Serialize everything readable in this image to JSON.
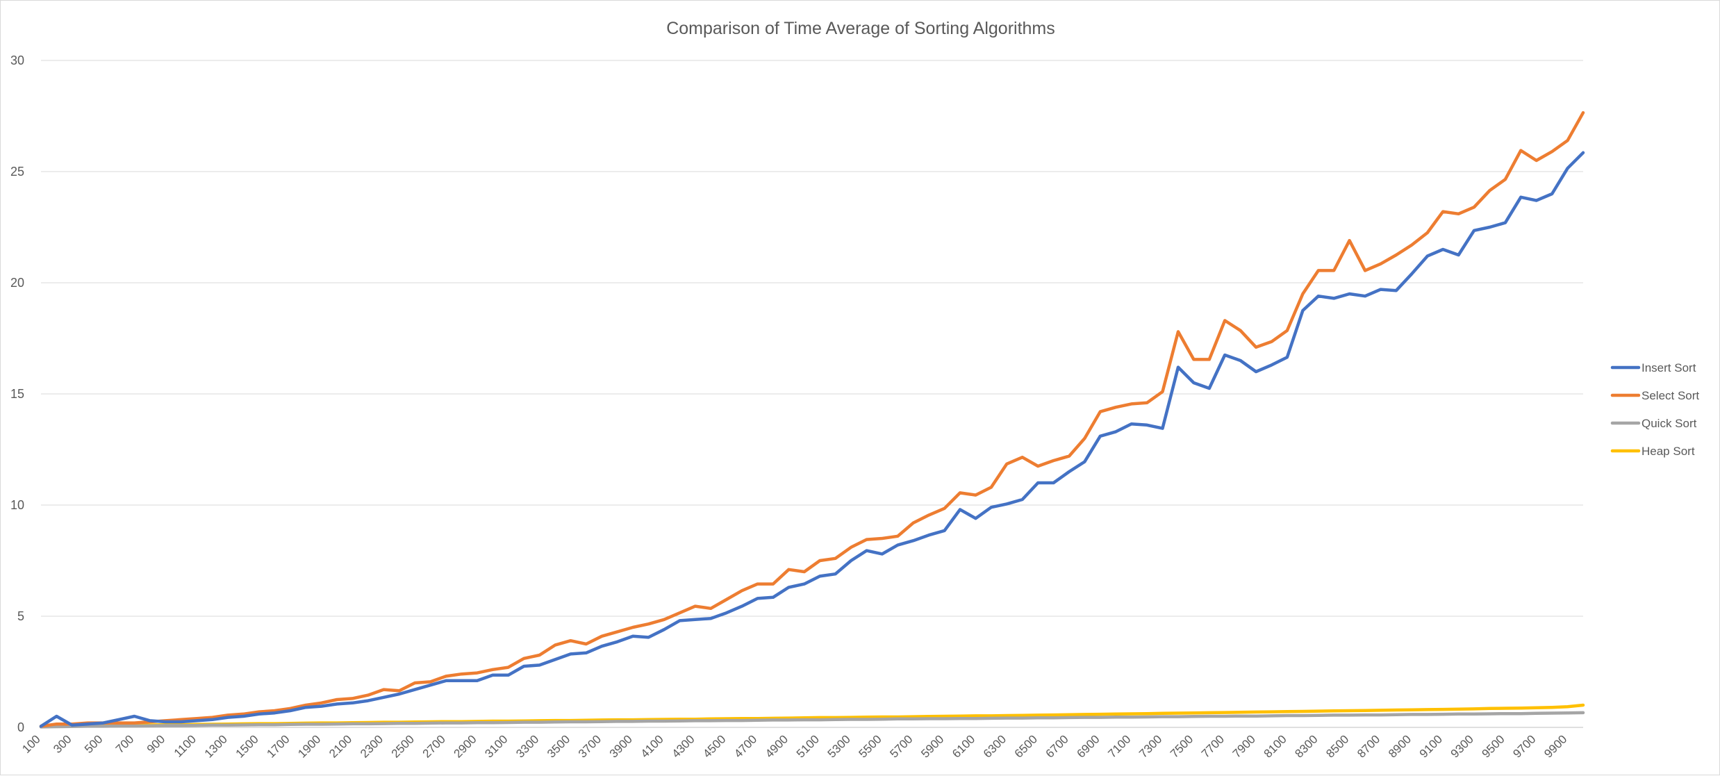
{
  "chart_data": {
    "type": "line",
    "title": "Comparison of Time Average of Sorting Algorithms",
    "xlabel": "",
    "ylabel": "",
    "ylim": [
      0,
      30
    ],
    "yticks": [
      0,
      5,
      10,
      15,
      20,
      25,
      30
    ],
    "grid": true,
    "legend_position": "right",
    "x": [
      100,
      200,
      300,
      400,
      500,
      600,
      700,
      800,
      900,
      1000,
      1100,
      1200,
      1300,
      1400,
      1500,
      1600,
      1700,
      1800,
      1900,
      2000,
      2100,
      2200,
      2300,
      2400,
      2500,
      2600,
      2700,
      2800,
      2900,
      3000,
      3100,
      3200,
      3300,
      3400,
      3500,
      3600,
      3700,
      3800,
      3900,
      4000,
      4100,
      4200,
      4300,
      4400,
      4500,
      4600,
      4700,
      4800,
      4900,
      5000,
      5100,
      5200,
      5300,
      5400,
      5500,
      5600,
      5700,
      5800,
      5900,
      6000,
      6100,
      6200,
      6300,
      6400,
      6500,
      6600,
      6700,
      6800,
      6900,
      7000,
      7100,
      7200,
      7300,
      7400,
      7500,
      7600,
      7700,
      7800,
      7900,
      8000,
      8100,
      8200,
      8300,
      8400,
      8500,
      8600,
      8700,
      8800,
      8900,
      9000,
      9100,
      9200,
      9300,
      9400,
      9500,
      9600,
      9700,
      9800,
      9900,
      10000
    ],
    "x_tick_labels": [
      "100",
      "300",
      "500",
      "700",
      "900",
      "1100",
      "1300",
      "1500",
      "1700",
      "1900",
      "2100",
      "2300",
      "2500",
      "2700",
      "2900",
      "3100",
      "3300",
      "3500",
      "3700",
      "3900",
      "4100",
      "4300",
      "4500",
      "4700",
      "4900",
      "5100",
      "5300",
      "5500",
      "5700",
      "5900",
      "6100",
      "6300",
      "6500",
      "6700",
      "6900",
      "7100",
      "7300",
      "7500",
      "7700",
      "7900",
      "8100",
      "8300",
      "8500",
      "8700",
      "8900",
      "9100",
      "9300",
      "9500",
      "9700",
      "9900"
    ],
    "series": [
      {
        "name": "Insert Sort",
        "color": "#4472C4",
        "values": [
          0.05,
          0.5,
          0.1,
          0.15,
          0.2,
          0.35,
          0.5,
          0.3,
          0.25,
          0.25,
          0.3,
          0.35,
          0.45,
          0.5,
          0.6,
          0.65,
          0.75,
          0.9,
          0.95,
          1.05,
          1.1,
          1.2,
          1.35,
          1.5,
          1.7,
          1.9,
          2.1,
          2.1,
          2.1,
          2.35,
          2.35,
          2.75,
          2.8,
          3.05,
          3.3,
          3.35,
          3.65,
          3.85,
          4.1,
          4.05,
          4.4,
          4.8,
          4.85,
          4.9,
          5.15,
          5.45,
          5.8,
          5.85,
          6.3,
          6.45,
          6.8,
          6.9,
          7.5,
          7.95,
          7.8,
          8.2,
          8.4,
          8.65,
          8.85,
          9.8,
          9.4,
          9.9,
          10.05,
          10.25,
          11.0,
          11.0,
          11.5,
          11.95,
          13.1,
          13.3,
          13.65,
          13.6,
          13.45,
          16.2,
          15.5,
          15.25,
          16.75,
          16.5,
          16.0,
          16.3,
          16.65,
          18.75,
          19.4,
          19.3,
          19.5,
          19.4,
          19.7,
          19.65,
          20.4,
          21.2,
          21.5,
          21.25,
          22.35,
          22.5,
          22.7,
          23.85,
          23.7,
          24.0,
          25.15,
          25.85
        ]
      },
      {
        "name": "Select Sort",
        "color": "#ED7D31",
        "values": [
          0.05,
          0.15,
          0.15,
          0.2,
          0.2,
          0.2,
          0.2,
          0.25,
          0.3,
          0.35,
          0.4,
          0.45,
          0.55,
          0.6,
          0.7,
          0.75,
          0.85,
          1.0,
          1.1,
          1.25,
          1.3,
          1.45,
          1.7,
          1.65,
          2.0,
          2.05,
          2.3,
          2.4,
          2.45,
          2.6,
          2.7,
          3.1,
          3.25,
          3.7,
          3.9,
          3.75,
          4.1,
          4.3,
          4.5,
          4.65,
          4.85,
          5.15,
          5.45,
          5.35,
          5.75,
          6.15,
          6.45,
          6.45,
          7.1,
          7.0,
          7.5,
          7.6,
          8.1,
          8.45,
          8.5,
          8.6,
          9.2,
          9.55,
          9.85,
          10.55,
          10.45,
          10.8,
          11.85,
          12.15,
          11.75,
          12.0,
          12.2,
          13.0,
          14.2,
          14.4,
          14.55,
          14.6,
          15.1,
          17.8,
          16.55,
          16.55,
          18.3,
          17.85,
          17.1,
          17.35,
          17.85,
          19.5,
          20.55,
          20.55,
          21.9,
          20.55,
          20.85,
          21.25,
          21.7,
          22.25,
          23.2,
          23.1,
          23.4,
          24.15,
          24.65,
          25.95,
          25.5,
          25.9,
          26.4,
          27.65
        ]
      },
      {
        "name": "Quick Sort",
        "color": "#A5A5A5",
        "values": [
          0.02,
          0.03,
          0.04,
          0.05,
          0.05,
          0.06,
          0.06,
          0.07,
          0.08,
          0.08,
          0.09,
          0.1,
          0.1,
          0.11,
          0.12,
          0.12,
          0.13,
          0.14,
          0.14,
          0.15,
          0.16,
          0.16,
          0.17,
          0.18,
          0.18,
          0.19,
          0.2,
          0.2,
          0.21,
          0.21,
          0.22,
          0.23,
          0.23,
          0.24,
          0.25,
          0.25,
          0.26,
          0.27,
          0.27,
          0.28,
          0.28,
          0.29,
          0.3,
          0.3,
          0.31,
          0.31,
          0.32,
          0.33,
          0.33,
          0.34,
          0.34,
          0.35,
          0.36,
          0.36,
          0.37,
          0.38,
          0.38,
          0.39,
          0.39,
          0.4,
          0.4,
          0.41,
          0.42,
          0.42,
          0.43,
          0.43,
          0.44,
          0.45,
          0.45,
          0.46,
          0.46,
          0.47,
          0.48,
          0.48,
          0.49,
          0.5,
          0.5,
          0.51,
          0.51,
          0.52,
          0.53,
          0.53,
          0.54,
          0.55,
          0.55,
          0.56,
          0.56,
          0.57,
          0.58,
          0.58,
          0.59,
          0.6,
          0.6,
          0.61,
          0.62,
          0.62,
          0.63,
          0.64,
          0.65,
          0.66
        ]
      },
      {
        "name": "Heap Sort",
        "color": "#FFC000",
        "values": [
          0.05,
          0.05,
          0.06,
          0.07,
          0.08,
          0.09,
          0.1,
          0.11,
          0.12,
          0.12,
          0.13,
          0.14,
          0.15,
          0.16,
          0.17,
          0.17,
          0.18,
          0.19,
          0.2,
          0.2,
          0.21,
          0.22,
          0.23,
          0.23,
          0.24,
          0.25,
          0.26,
          0.26,
          0.27,
          0.28,
          0.28,
          0.29,
          0.3,
          0.31,
          0.31,
          0.32,
          0.33,
          0.34,
          0.34,
          0.35,
          0.36,
          0.37,
          0.37,
          0.38,
          0.39,
          0.4,
          0.4,
          0.41,
          0.42,
          0.43,
          0.44,
          0.44,
          0.45,
          0.46,
          0.47,
          0.47,
          0.48,
          0.49,
          0.5,
          0.51,
          0.52,
          0.52,
          0.53,
          0.54,
          0.55,
          0.56,
          0.57,
          0.58,
          0.59,
          0.6,
          0.61,
          0.62,
          0.63,
          0.64,
          0.65,
          0.66,
          0.67,
          0.68,
          0.69,
          0.7,
          0.71,
          0.72,
          0.73,
          0.74,
          0.75,
          0.76,
          0.77,
          0.78,
          0.79,
          0.8,
          0.81,
          0.82,
          0.83,
          0.85,
          0.86,
          0.87,
          0.88,
          0.9,
          0.93,
          1.0
        ]
      }
    ]
  }
}
